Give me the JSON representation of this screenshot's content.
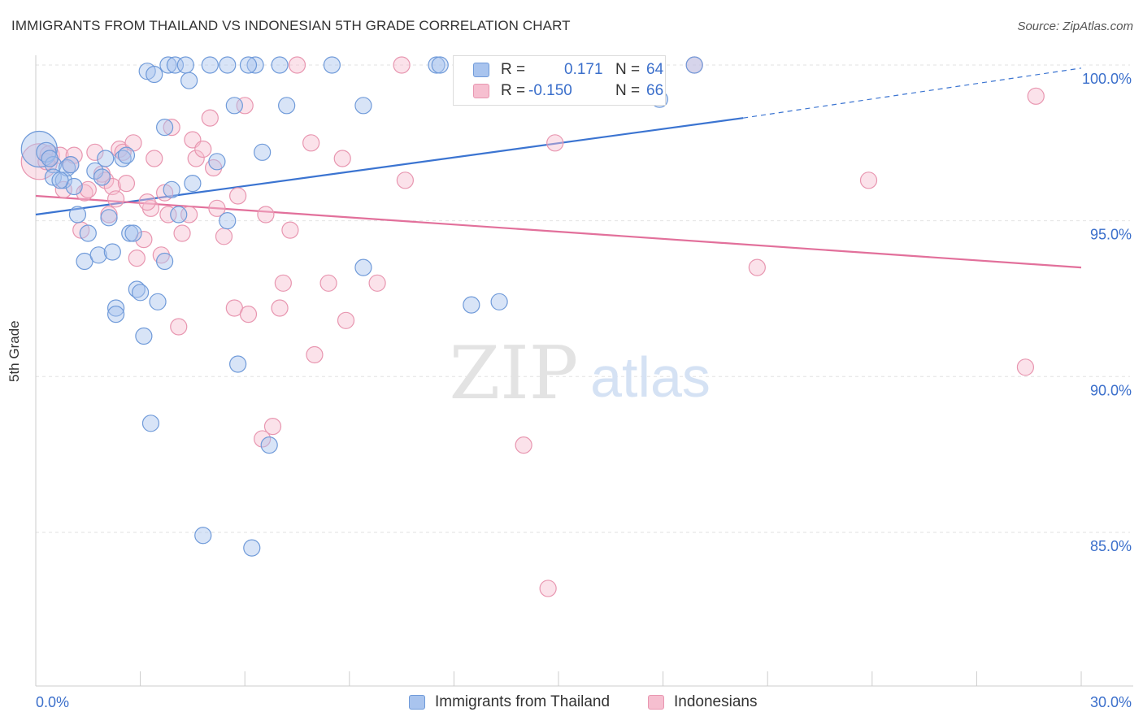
{
  "header": {
    "title": "IMMIGRANTS FROM THAILAND VS INDONESIAN 5TH GRADE CORRELATION CHART",
    "source": "Source: ZipAtlas.com"
  },
  "watermark": {
    "zip": "ZIP",
    "atlas": "atlas"
  },
  "stats_legend": {
    "rows": [
      {
        "r_label": "R =",
        "r_value": "0.171",
        "n_label": "N =",
        "n_value": "64"
      },
      {
        "r_label": "R =",
        "r_value": "-0.150",
        "n_label": "N =",
        "n_value": "66"
      }
    ]
  },
  "bottom_legend": {
    "thailand": "Immigrants from Thailand",
    "indonesians": "Indonesians"
  },
  "colors": {
    "blue_fill": "#a9c4ee",
    "blue_stroke": "#6f9ad9",
    "blue_line": "#3b74d1",
    "pink_fill": "#f6bfd0",
    "pink_stroke": "#e896b0",
    "pink_line": "#e2709b",
    "axis_text": "#3b6fcb"
  },
  "chart_data": {
    "type": "scatter",
    "title": "IMMIGRANTS FROM THAILAND VS INDONESIAN 5TH GRADE CORRELATION CHART",
    "xlabel": "",
    "ylabel": "5th Grade",
    "xlim": [
      0,
      30
    ],
    "ylim": [
      80.5,
      100.5
    ],
    "x_tick_labels": [
      "0.0%",
      "30.0%"
    ],
    "y_ticks": [
      85,
      90,
      95,
      100
    ],
    "y_tick_labels": [
      "85.0%",
      "90.0%",
      "95.0%",
      "100.0%"
    ],
    "grid": true,
    "legend": "bottom-center",
    "series": [
      {
        "name": "Immigrants from Thailand",
        "color": "blue",
        "r": 0.171,
        "n": 64,
        "trend": {
          "x": [
            0,
            20.3
          ],
          "y": [
            95.2,
            98.3
          ],
          "dashed_to": [
            30,
            99.9
          ]
        },
        "points": [
          [
            0.1,
            97.3,
            22
          ],
          [
            0.3,
            97.2,
            12
          ],
          [
            0.5,
            96.8,
            10
          ],
          [
            0.5,
            96.4,
            10
          ],
          [
            0.8,
            96.3,
            10
          ],
          [
            0.9,
            96.7,
            10
          ],
          [
            1.1,
            96.1,
            10
          ],
          [
            1.2,
            95.2,
            10
          ],
          [
            1.4,
            93.7,
            10
          ],
          [
            1.5,
            94.6,
            10
          ],
          [
            1.7,
            96.6,
            10
          ],
          [
            1.8,
            93.9,
            10
          ],
          [
            1.9,
            96.4,
            10
          ],
          [
            2.0,
            97.0,
            10
          ],
          [
            2.1,
            95.1,
            10
          ],
          [
            2.2,
            94.0,
            10
          ],
          [
            2.3,
            92.2,
            10
          ],
          [
            2.3,
            92.0,
            10
          ],
          [
            2.5,
            97.0,
            10
          ],
          [
            2.7,
            94.6,
            10
          ],
          [
            2.8,
            94.6,
            10
          ],
          [
            2.9,
            92.8,
            10
          ],
          [
            3.0,
            92.7,
            10
          ],
          [
            3.1,
            91.3,
            10
          ],
          [
            3.2,
            99.8,
            10
          ],
          [
            3.3,
            88.5,
            10
          ],
          [
            3.4,
            99.7,
            10
          ],
          [
            3.5,
            92.4,
            10
          ],
          [
            3.7,
            93.7,
            10
          ],
          [
            3.7,
            98.0,
            10
          ],
          [
            3.8,
            100.0,
            10
          ],
          [
            4.0,
            100.0,
            10
          ],
          [
            4.1,
            95.2,
            10
          ],
          [
            4.3,
            100.0,
            10
          ],
          [
            4.4,
            99.5,
            10
          ],
          [
            4.5,
            96.2,
            10
          ],
          [
            4.8,
            84.9,
            10
          ],
          [
            5.0,
            100.0,
            10
          ],
          [
            5.2,
            96.9,
            10
          ],
          [
            5.5,
            100.0,
            10
          ],
          [
            5.5,
            95.0,
            10
          ],
          [
            5.7,
            98.7,
            10
          ],
          [
            5.8,
            90.4,
            10
          ],
          [
            6.2,
            84.5,
            10
          ],
          [
            6.3,
            100.0,
            10
          ],
          [
            6.5,
            97.2,
            10
          ],
          [
            6.7,
            87.8,
            10
          ],
          [
            7.0,
            100.0,
            10
          ],
          [
            7.2,
            98.7,
            10
          ],
          [
            8.5,
            100.0,
            10
          ],
          [
            9.4,
            98.7,
            10
          ],
          [
            9.4,
            93.5,
            10
          ],
          [
            11.5,
            100.0,
            10
          ],
          [
            11.6,
            100.0,
            10
          ],
          [
            12.5,
            92.3,
            10
          ],
          [
            13.3,
            92.4,
            10
          ],
          [
            17.9,
            98.9,
            10
          ],
          [
            18.9,
            100.0,
            10
          ],
          [
            1.0,
            96.8,
            10
          ],
          [
            0.4,
            97.0,
            10
          ],
          [
            2.6,
            97.1,
            10
          ],
          [
            3.9,
            96.0,
            10
          ],
          [
            6.1,
            100.0,
            10
          ],
          [
            0.7,
            96.3,
            10
          ]
        ]
      },
      {
        "name": "Indonesians",
        "color": "pink",
        "r": -0.15,
        "n": 66,
        "trend": {
          "x": [
            0,
            30
          ],
          "y": [
            95.8,
            93.5
          ]
        },
        "points": [
          [
            0.1,
            96.9,
            22
          ],
          [
            0.4,
            97.1,
            12
          ],
          [
            0.7,
            97.1,
            10
          ],
          [
            0.8,
            96.0,
            10
          ],
          [
            1.0,
            96.8,
            10
          ],
          [
            1.1,
            97.1,
            10
          ],
          [
            1.3,
            94.7,
            10
          ],
          [
            1.4,
            95.9,
            10
          ],
          [
            1.5,
            96.0,
            10
          ],
          [
            1.7,
            97.2,
            10
          ],
          [
            1.9,
            96.5,
            10
          ],
          [
            2.0,
            96.3,
            10
          ],
          [
            2.1,
            95.2,
            10
          ],
          [
            2.2,
            96.1,
            10
          ],
          [
            2.3,
            95.7,
            10
          ],
          [
            2.4,
            97.3,
            10
          ],
          [
            2.5,
            97.2,
            10
          ],
          [
            2.6,
            96.2,
            10
          ],
          [
            2.8,
            97.5,
            10
          ],
          [
            2.9,
            93.8,
            10
          ],
          [
            3.1,
            94.4,
            10
          ],
          [
            3.3,
            95.4,
            10
          ],
          [
            3.4,
            97.0,
            10
          ],
          [
            3.6,
            93.9,
            10
          ],
          [
            3.7,
            95.9,
            10
          ],
          [
            3.8,
            95.2,
            10
          ],
          [
            3.9,
            98.0,
            10
          ],
          [
            4.1,
            91.6,
            10
          ],
          [
            4.2,
            94.6,
            10
          ],
          [
            4.4,
            95.2,
            10
          ],
          [
            4.5,
            97.6,
            10
          ],
          [
            4.6,
            97.0,
            10
          ],
          [
            4.8,
            97.3,
            10
          ],
          [
            5.0,
            98.3,
            10
          ],
          [
            5.1,
            96.7,
            10
          ],
          [
            5.2,
            95.4,
            10
          ],
          [
            5.4,
            94.5,
            10
          ],
          [
            5.7,
            92.2,
            10
          ],
          [
            5.8,
            95.8,
            10
          ],
          [
            6.0,
            98.7,
            10
          ],
          [
            6.1,
            92.0,
            10
          ],
          [
            6.5,
            88.0,
            10
          ],
          [
            6.6,
            95.2,
            10
          ],
          [
            6.8,
            88.4,
            10
          ],
          [
            7.0,
            92.2,
            10
          ],
          [
            7.1,
            93.0,
            10
          ],
          [
            7.3,
            94.7,
            10
          ],
          [
            7.5,
            100.0,
            10
          ],
          [
            7.9,
            97.5,
            10
          ],
          [
            8.0,
            90.7,
            10
          ],
          [
            8.4,
            93.0,
            10
          ],
          [
            8.8,
            97.0,
            10
          ],
          [
            8.9,
            91.8,
            10
          ],
          [
            9.8,
            93.0,
            10
          ],
          [
            10.5,
            100.0,
            10
          ],
          [
            10.6,
            96.3,
            10
          ],
          [
            14.0,
            87.8,
            10
          ],
          [
            14.9,
            97.5,
            10
          ],
          [
            14.7,
            83.2,
            10
          ],
          [
            18.9,
            100.0,
            10
          ],
          [
            20.7,
            93.5,
            10
          ],
          [
            23.9,
            96.3,
            10
          ],
          [
            28.4,
            90.3,
            10
          ],
          [
            28.7,
            99.0,
            10
          ],
          [
            0.3,
            96.9,
            10
          ],
          [
            3.2,
            95.6,
            10
          ]
        ]
      }
    ]
  }
}
